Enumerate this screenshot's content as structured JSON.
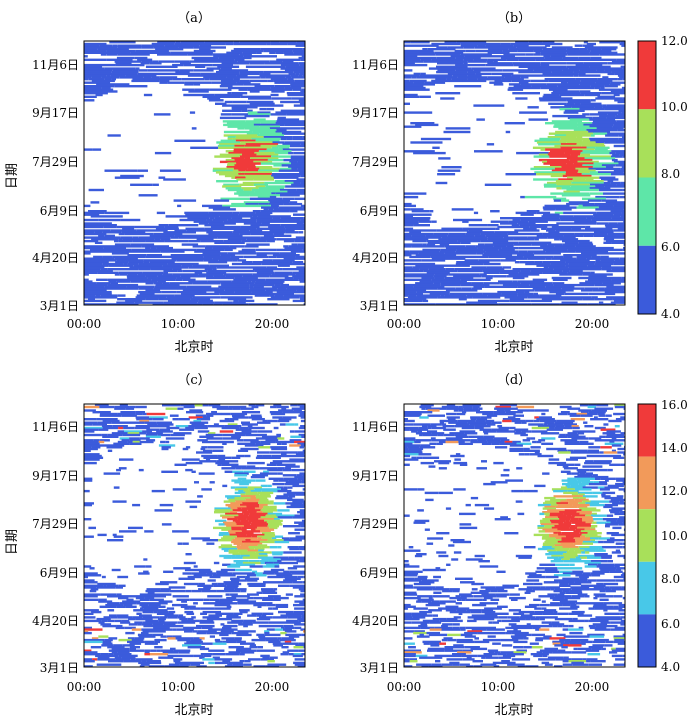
{
  "axes": {
    "xlabel": "北京时",
    "ylabel": "日期",
    "x_ticks": [
      "00:00",
      "10:00",
      "20:00"
    ],
    "y_ticks": [
      "3月1日",
      "4月20日",
      "6月9日",
      "7月29日",
      "9月17日",
      "11月6日"
    ]
  },
  "colors": {
    "top": [
      "#3b5bdb",
      "#5ee6a8",
      "#a8e05a",
      "#f03a3a"
    ],
    "bottom": [
      "#3b5bdb",
      "#48c8e8",
      "#a8e05a",
      "#f29a5a",
      "#f03a3a"
    ]
  },
  "colorbars": [
    {
      "ticks": [
        "4.0",
        "6.0",
        "8.0",
        "10.0",
        "12.0"
      ]
    },
    {
      "ticks": [
        "4.0",
        "6.0",
        "8.0",
        "10.0",
        "12.0",
        "14.0",
        "16.0"
      ]
    }
  ],
  "chart_data": [
    {
      "type": "heatmap",
      "panel": "（a）",
      "title": "（a）",
      "x_range_hours": [
        0,
        23.5
      ],
      "y_range_days": [
        0,
        272
      ],
      "levels": [
        4.0,
        6.0,
        8.0,
        10.0,
        12.0
      ],
      "hotspot": {
        "hour": 17.5,
        "day": 150
      }
    },
    {
      "type": "heatmap",
      "panel": "（b）",
      "title": "（b）",
      "x_range_hours": [
        0,
        23.5
      ],
      "y_range_days": [
        0,
        272
      ],
      "levels": [
        4.0,
        6.0,
        8.0,
        10.0,
        12.0
      ],
      "hotspot": {
        "hour": 17.5,
        "day": 150
      }
    },
    {
      "type": "heatmap",
      "panel": "（c）",
      "title": "（c）",
      "x_range_hours": [
        0,
        23.5
      ],
      "y_range_days": [
        0,
        272
      ],
      "levels": [
        4.0,
        6.0,
        8.0,
        10.0,
        12.0,
        14.0,
        16.0
      ],
      "hotspot": {
        "hour": 17.5,
        "day": 150
      }
    },
    {
      "type": "heatmap",
      "panel": "（d）",
      "title": "（d）",
      "x_range_hours": [
        0,
        23.5
      ],
      "y_range_days": [
        0,
        272
      ],
      "levels": [
        4.0,
        6.0,
        8.0,
        10.0,
        12.0,
        14.0,
        16.0
      ],
      "hotspot": {
        "hour": 17.5,
        "day": 150
      }
    }
  ]
}
